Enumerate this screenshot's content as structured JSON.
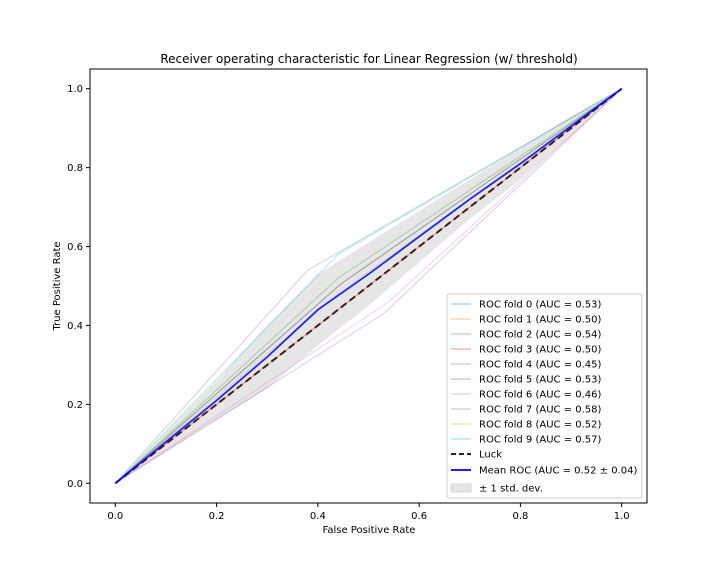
{
  "chart_data": {
    "type": "line",
    "title": "Receiver operating characteristic for Linear Regression (w/ threshold)",
    "xlabel": "False Positive Rate",
    "ylabel": "True Positive Rate",
    "xlim": [
      -0.05,
      1.05
    ],
    "ylim": [
      -0.05,
      1.05
    ],
    "xticks": [
      "0.0",
      "0.2",
      "0.4",
      "0.6",
      "0.8",
      "1.0"
    ],
    "yticks": [
      "0.0",
      "0.2",
      "0.4",
      "0.6",
      "0.8",
      "1.0"
    ],
    "grid": false,
    "legend_position": "lower-right",
    "series": [
      {
        "name": "ROC fold 0 (AUC = 0.53)",
        "color": "#1f77b4",
        "x": [
          0,
          0.44,
          1
        ],
        "y": [
          0,
          0.5,
          1
        ]
      },
      {
        "name": "ROC fold 1 (AUC = 0.50)",
        "color": "#ff7f0e",
        "x": [
          0,
          0.45,
          1
        ],
        "y": [
          0,
          0.45,
          1
        ]
      },
      {
        "name": "ROC fold 2 (AUC = 0.54)",
        "color": "#2ca02c",
        "x": [
          0,
          0.44,
          1
        ],
        "y": [
          0,
          0.52,
          1
        ]
      },
      {
        "name": "ROC fold 3 (AUC = 0.50)",
        "color": "#d62728",
        "x": [
          0,
          0.46,
          1
        ],
        "y": [
          0,
          0.46,
          1
        ]
      },
      {
        "name": "ROC fold 4 (AUC = 0.45)",
        "color": "#9467bd",
        "x": [
          0,
          0.53,
          1
        ],
        "y": [
          0,
          0.43,
          1
        ]
      },
      {
        "name": "ROC fold 5 (AUC = 0.53)",
        "color": "#8c564b",
        "x": [
          0,
          0.45,
          1
        ],
        "y": [
          0,
          0.51,
          1
        ]
      },
      {
        "name": "ROC fold 6 (AUC = 0.46)",
        "color": "#e377c2",
        "x": [
          0,
          0.54,
          1
        ],
        "y": [
          0,
          0.46,
          1
        ]
      },
      {
        "name": "ROC fold 7 (AUC = 0.58)",
        "color": "#7f7f7f",
        "x": [
          0,
          0.38,
          1
        ],
        "y": [
          0,
          0.54,
          1
        ]
      },
      {
        "name": "ROC fold 8 (AUC = 0.52)",
        "color": "#bcbd22",
        "x": [
          0,
          0.44,
          1
        ],
        "y": [
          0,
          0.48,
          1
        ]
      },
      {
        "name": "ROC fold 9 (AUC = 0.57)",
        "color": "#17becf",
        "x": [
          0,
          0.44,
          1
        ],
        "y": [
          0,
          0.58,
          1
        ]
      }
    ],
    "luck": {
      "name": "Luck",
      "color": "#3a1f1f",
      "x": [
        0,
        1
      ],
      "y": [
        0,
        1
      ]
    },
    "mean_roc": {
      "name": "Mean ROC (AUC = 0.52 ± 0.04)",
      "color": "#0000ff",
      "x": [
        0,
        0.1,
        0.2,
        0.3,
        0.4,
        0.5,
        0.6,
        0.7,
        0.8,
        0.9,
        1.0
      ],
      "y": [
        0,
        0.105,
        0.21,
        0.32,
        0.44,
        0.53,
        0.625,
        0.72,
        0.81,
        0.905,
        1.0
      ]
    },
    "std_band": {
      "name": "± 1 std. dev.",
      "color": "#808080",
      "upper": [
        0,
        0.13,
        0.26,
        0.4,
        0.53,
        0.61,
        0.69,
        0.77,
        0.85,
        0.93,
        1.0
      ],
      "lower": [
        0,
        0.08,
        0.16,
        0.24,
        0.35,
        0.45,
        0.56,
        0.67,
        0.77,
        0.88,
        1.0
      ]
    }
  }
}
